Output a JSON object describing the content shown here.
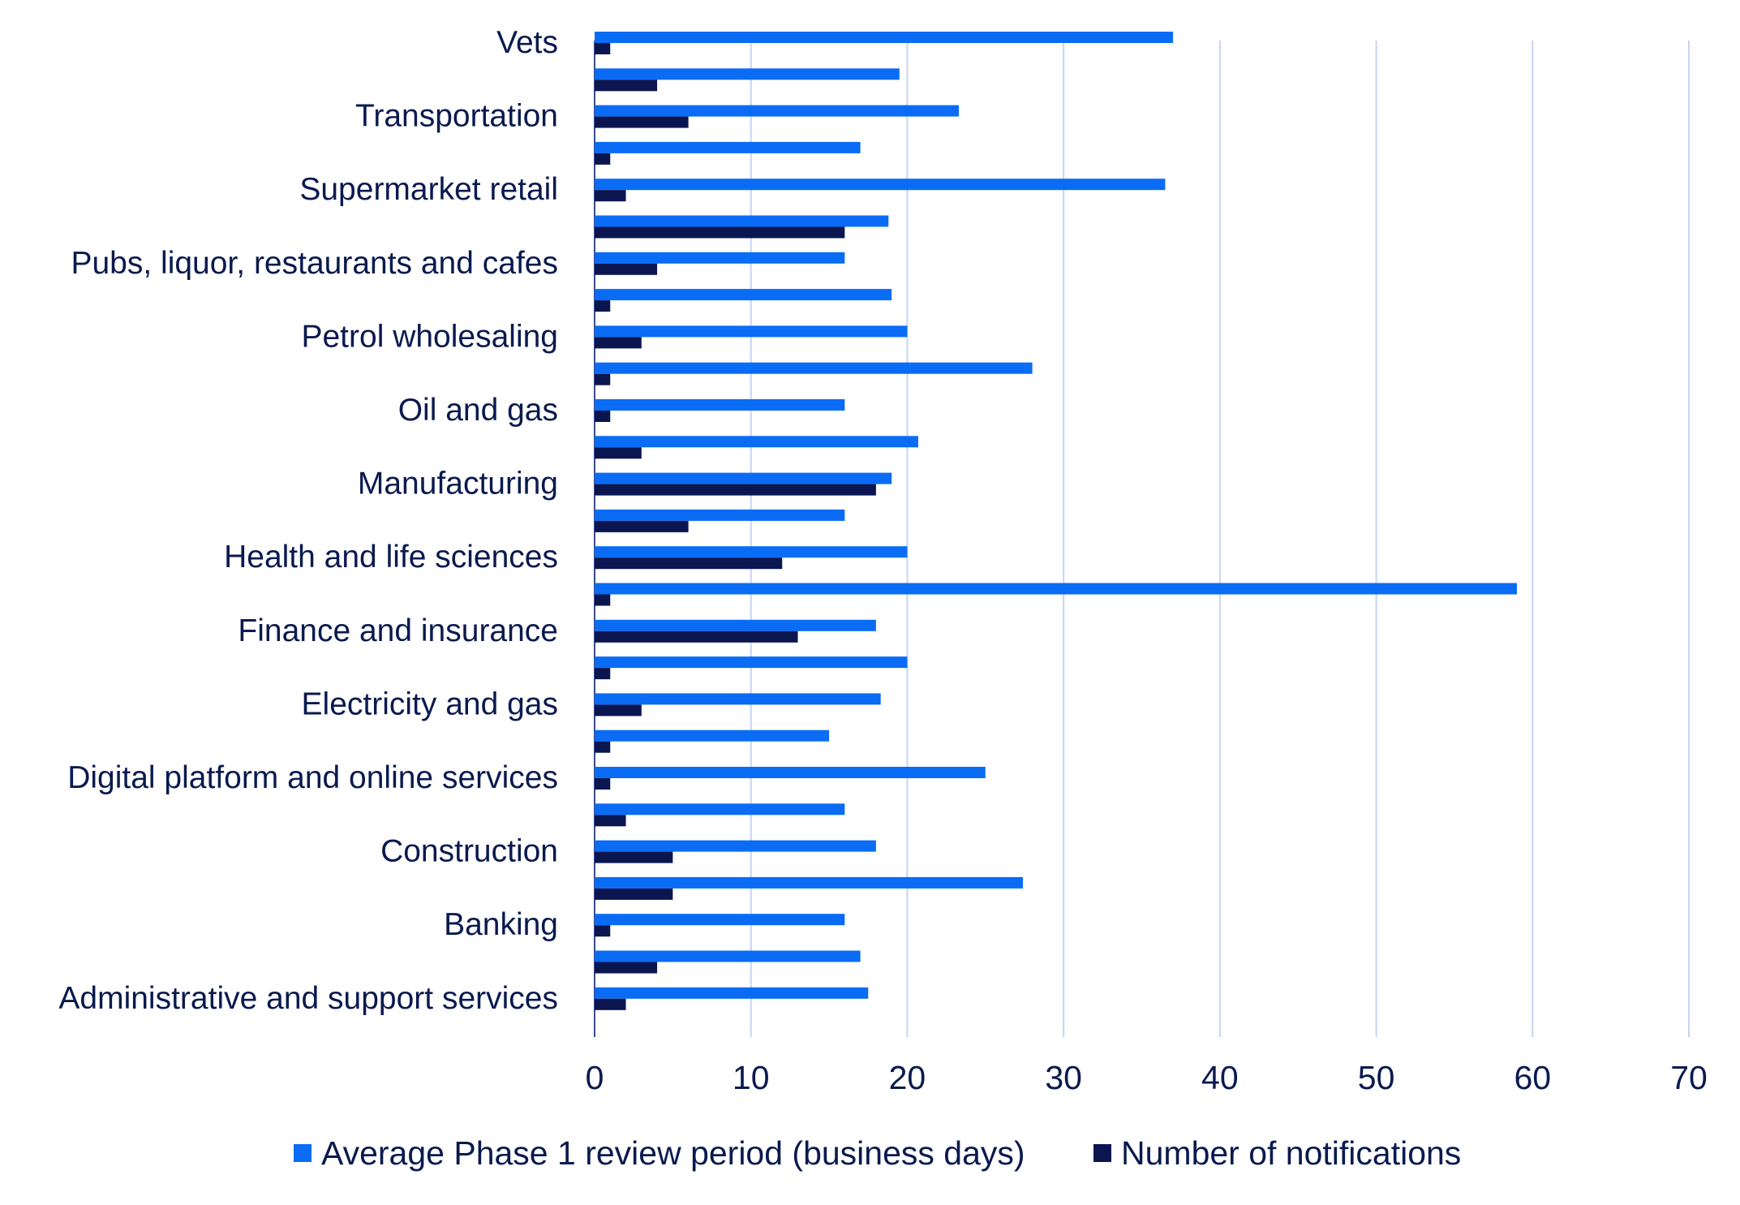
{
  "chart_data": {
    "type": "bar",
    "orientation": "horizontal",
    "title": "",
    "xlabel": "",
    "ylabel": "",
    "xlim": [
      0,
      70
    ],
    "xticks": [
      "0",
      "10",
      "20",
      "30",
      "40",
      "50",
      "60",
      "70"
    ],
    "grid": true,
    "legend_position": "bottom",
    "categories_top_to_bottom": [
      "Vets",
      "",
      "Transportation",
      "",
      "Supermarket retail",
      "",
      "Pubs, liquor, restaurants and cafes",
      "",
      "Petrol wholesaling",
      "",
      "Oil and gas",
      "",
      "Manufacturing",
      "",
      "Health and life sciences",
      "",
      "Finance and insurance",
      "",
      "Electricity and gas",
      "",
      "Digital platform and online services",
      "",
      "Construction",
      "",
      "Banking",
      "",
      "Administrative and support services"
    ],
    "series": [
      {
        "name": "Average Phase 1 review period (business days)",
        "color": "#0a6cf5",
        "values": [
          37,
          19.5,
          23.3,
          17,
          36.5,
          18.8,
          16,
          19,
          20,
          28,
          16,
          20.7,
          19,
          16,
          20,
          59,
          18,
          20,
          18.3,
          15,
          25,
          16,
          18,
          27.4,
          16,
          17,
          17.5
        ]
      },
      {
        "name": "Number of notifications",
        "color": "#0b1650",
        "values": [
          1,
          4,
          6,
          1,
          2,
          16,
          4,
          1,
          3,
          1,
          1,
          3,
          18,
          6,
          12,
          1,
          13,
          1,
          3,
          1,
          1,
          2,
          5,
          5,
          1,
          4,
          2
        ]
      }
    ]
  }
}
